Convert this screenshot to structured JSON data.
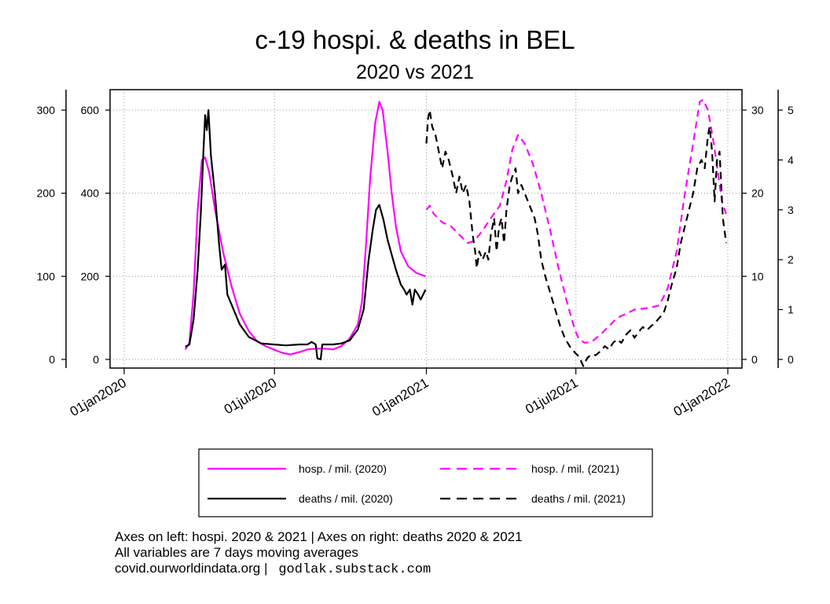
{
  "title": "c-19 hospi. & deaths in BEL",
  "subtitle": "2020 vs 2021",
  "notes": {
    "line1": "Axes on left: hospi. 2020 & 2021 | Axes on right: deaths 2020 & 2021",
    "line2": "All variables are 7 days moving averages",
    "line3": "covid.ourworldindata.org |",
    "line3_mono": "godlak.substack.com"
  },
  "colors": {
    "hosp": "#ff00ff",
    "deaths": "#000000",
    "grid": "#999999"
  },
  "chart_data": {
    "type": "line",
    "x_type": "date",
    "x_ticks": [
      "2020-01-01",
      "2020-07-01",
      "2021-01-01",
      "2021-07-01",
      "2022-01-01"
    ],
    "x_tick_labels": [
      "01jan2020",
      "01jul2020",
      "01jan2021",
      "01jul2021",
      "01jan2022"
    ],
    "xlim": [
      "2020-01-01",
      "2022-01-01"
    ],
    "grid": true,
    "legend_position": "bottom",
    "axes": {
      "left_outer": {
        "ylim": [
          0,
          300
        ],
        "ticks": [
          0,
          100,
          200,
          300
        ],
        "series": "hosp_2020"
      },
      "left_inner": {
        "ylim": [
          0,
          600
        ],
        "ticks": [
          0,
          200,
          400,
          600
        ],
        "series": "hosp_2021"
      },
      "right_inner": {
        "ylim": [
          0,
          30
        ],
        "ticks": [
          0,
          10,
          20,
          30
        ],
        "series": "deaths_2021"
      },
      "right_outer": {
        "ylim": [
          0,
          5
        ],
        "ticks": [
          0,
          1,
          2,
          3,
          4,
          5
        ],
        "series": "deaths_2020"
      }
    },
    "series": [
      {
        "id": "hosp_2020",
        "name": "hosp. / mil. (2020)",
        "axis": "left_outer",
        "color": "#ff00ff",
        "dash": "solid",
        "points": [
          [
            "2020-03-15",
            12
          ],
          [
            "2020-03-20",
            20
          ],
          [
            "2020-03-25",
            80
          ],
          [
            "2020-03-30",
            180
          ],
          [
            "2020-04-04",
            240
          ],
          [
            "2020-04-08",
            243
          ],
          [
            "2020-04-13",
            225
          ],
          [
            "2020-04-20",
            180
          ],
          [
            "2020-04-30",
            128
          ],
          [
            "2020-05-10",
            88
          ],
          [
            "2020-05-20",
            55
          ],
          [
            "2020-05-31",
            34
          ],
          [
            "2020-06-10",
            22
          ],
          [
            "2020-06-20",
            16
          ],
          [
            "2020-06-30",
            12
          ],
          [
            "2020-07-10",
            8
          ],
          [
            "2020-07-20",
            6
          ],
          [
            "2020-08-01",
            9
          ],
          [
            "2020-08-10",
            12
          ],
          [
            "2020-08-20",
            13
          ],
          [
            "2020-08-31",
            13
          ],
          [
            "2020-09-10",
            12
          ],
          [
            "2020-09-20",
            16
          ],
          [
            "2020-09-30",
            25
          ],
          [
            "2020-10-10",
            42
          ],
          [
            "2020-10-15",
            70
          ],
          [
            "2020-10-20",
            140
          ],
          [
            "2020-10-25",
            220
          ],
          [
            "2020-10-31",
            285
          ],
          [
            "2020-11-05",
            310
          ],
          [
            "2020-11-09",
            300
          ],
          [
            "2020-11-15",
            250
          ],
          [
            "2020-11-20",
            200
          ],
          [
            "2020-11-25",
            160
          ],
          [
            "2020-12-01",
            130
          ],
          [
            "2020-12-10",
            112
          ],
          [
            "2020-12-20",
            104
          ],
          [
            "2020-12-31",
            100
          ]
        ]
      },
      {
        "id": "deaths_2020",
        "name": "deaths / mil. (2020)",
        "axis": "right_outer",
        "color": "#000000",
        "dash": "solid",
        "points": [
          [
            "2020-03-15",
            0.25
          ],
          [
            "2020-03-20",
            0.3
          ],
          [
            "2020-03-25",
            0.8
          ],
          [
            "2020-03-30",
            1.8
          ],
          [
            "2020-04-03",
            3.0
          ],
          [
            "2020-04-06",
            4.2
          ],
          [
            "2020-04-08",
            4.9
          ],
          [
            "2020-04-10",
            4.6
          ],
          [
            "2020-04-12",
            5.0
          ],
          [
            "2020-04-15",
            4.1
          ],
          [
            "2020-04-20",
            3.3
          ],
          [
            "2020-04-25",
            2.3
          ],
          [
            "2020-04-28",
            1.8
          ],
          [
            "2020-05-02",
            1.9
          ],
          [
            "2020-05-05",
            1.3
          ],
          [
            "2020-05-10",
            1.1
          ],
          [
            "2020-05-20",
            0.7
          ],
          [
            "2020-05-31",
            0.45
          ],
          [
            "2020-06-15",
            0.32
          ],
          [
            "2020-06-30",
            0.3
          ],
          [
            "2020-07-15",
            0.28
          ],
          [
            "2020-07-31",
            0.3
          ],
          [
            "2020-08-10",
            0.3
          ],
          [
            "2020-08-15",
            0.35
          ],
          [
            "2020-08-20",
            0.3
          ],
          [
            "2020-08-22",
            0.02
          ],
          [
            "2020-08-26",
            0.0
          ],
          [
            "2020-08-28",
            0.3
          ],
          [
            "2020-09-10",
            0.3
          ],
          [
            "2020-09-20",
            0.32
          ],
          [
            "2020-09-30",
            0.38
          ],
          [
            "2020-10-10",
            0.6
          ],
          [
            "2020-10-17",
            1.0
          ],
          [
            "2020-10-23",
            2.0
          ],
          [
            "2020-10-28",
            2.6
          ],
          [
            "2020-11-01",
            3.0
          ],
          [
            "2020-11-05",
            3.1
          ],
          [
            "2020-11-10",
            2.8
          ],
          [
            "2020-11-15",
            2.4
          ],
          [
            "2020-11-20",
            2.1
          ],
          [
            "2020-11-25",
            1.8
          ],
          [
            "2020-12-01",
            1.5
          ],
          [
            "2020-12-05",
            1.4
          ],
          [
            "2020-12-08",
            1.3
          ],
          [
            "2020-12-12",
            1.4
          ],
          [
            "2020-12-15",
            1.1
          ],
          [
            "2020-12-18",
            1.4
          ],
          [
            "2020-12-22",
            1.3
          ],
          [
            "2020-12-25",
            1.2
          ],
          [
            "2020-12-28",
            1.3
          ],
          [
            "2020-12-31",
            1.4
          ]
        ]
      },
      {
        "id": "hosp_2021",
        "name": "hosp. / mil. (2021)",
        "axis": "left_inner",
        "color": "#ff00ff",
        "dash": "dashed",
        "points": [
          [
            "2021-01-01",
            360
          ],
          [
            "2021-01-05",
            370
          ],
          [
            "2021-01-10",
            350
          ],
          [
            "2021-01-20",
            330
          ],
          [
            "2021-01-31",
            320
          ],
          [
            "2021-02-10",
            300
          ],
          [
            "2021-02-20",
            280
          ],
          [
            "2021-02-28",
            285
          ],
          [
            "2021-03-10",
            310
          ],
          [
            "2021-03-20",
            340
          ],
          [
            "2021-03-31",
            370
          ],
          [
            "2021-04-08",
            430
          ],
          [
            "2021-04-15",
            505
          ],
          [
            "2021-04-22",
            540
          ],
          [
            "2021-04-30",
            520
          ],
          [
            "2021-05-10",
            470
          ],
          [
            "2021-05-20",
            400
          ],
          [
            "2021-05-31",
            310
          ],
          [
            "2021-06-10",
            220
          ],
          [
            "2021-06-20",
            140
          ],
          [
            "2021-06-30",
            70
          ],
          [
            "2021-07-05",
            48
          ],
          [
            "2021-07-12",
            40
          ],
          [
            "2021-07-20",
            42
          ],
          [
            "2021-07-31",
            60
          ],
          [
            "2021-08-10",
            80
          ],
          [
            "2021-08-20",
            100
          ],
          [
            "2021-08-31",
            110
          ],
          [
            "2021-09-10",
            120
          ],
          [
            "2021-09-20",
            122
          ],
          [
            "2021-09-30",
            125
          ],
          [
            "2021-10-10",
            130
          ],
          [
            "2021-10-20",
            170
          ],
          [
            "2021-10-31",
            260
          ],
          [
            "2021-11-10",
            400
          ],
          [
            "2021-11-20",
            520
          ],
          [
            "2021-11-28",
            620
          ],
          [
            "2021-12-02",
            625
          ],
          [
            "2021-12-08",
            600
          ],
          [
            "2021-12-15",
            520
          ],
          [
            "2021-12-20",
            450
          ],
          [
            "2021-12-25",
            380
          ],
          [
            "2021-12-30",
            350
          ]
        ]
      },
      {
        "id": "deaths_2021",
        "name": "deaths / mil. (2021)",
        "axis": "right_inner",
        "color": "#000000",
        "dash": "dashed",
        "points": [
          [
            "2021-01-01",
            26
          ],
          [
            "2021-01-03",
            29
          ],
          [
            "2021-01-05",
            30
          ],
          [
            "2021-01-08",
            28
          ],
          [
            "2021-01-12",
            27
          ],
          [
            "2021-01-16",
            25
          ],
          [
            "2021-01-20",
            23
          ],
          [
            "2021-01-24",
            25
          ],
          [
            "2021-01-28",
            24
          ],
          [
            "2021-02-02",
            22
          ],
          [
            "2021-02-06",
            20
          ],
          [
            "2021-02-10",
            22
          ],
          [
            "2021-02-14",
            20
          ],
          [
            "2021-02-18",
            21
          ],
          [
            "2021-02-22",
            19
          ],
          [
            "2021-02-26",
            15
          ],
          [
            "2021-03-01",
            13
          ],
          [
            "2021-03-03",
            11
          ],
          [
            "2021-03-06",
            13
          ],
          [
            "2021-03-10",
            12
          ],
          [
            "2021-03-14",
            13
          ],
          [
            "2021-03-17",
            12
          ],
          [
            "2021-03-20",
            15
          ],
          [
            "2021-03-24",
            17
          ],
          [
            "2021-03-27",
            13
          ],
          [
            "2021-03-30",
            16
          ],
          [
            "2021-04-02",
            17
          ],
          [
            "2021-04-05",
            14
          ],
          [
            "2021-04-08",
            18
          ],
          [
            "2021-04-12",
            21
          ],
          [
            "2021-04-15",
            22
          ],
          [
            "2021-04-19",
            23
          ],
          [
            "2021-04-22",
            20
          ],
          [
            "2021-04-26",
            21
          ],
          [
            "2021-04-30",
            20
          ],
          [
            "2021-05-04",
            19
          ],
          [
            "2021-05-08",
            18
          ],
          [
            "2021-05-12",
            17
          ],
          [
            "2021-05-16",
            15
          ],
          [
            "2021-05-20",
            12
          ],
          [
            "2021-05-25",
            10
          ],
          [
            "2021-05-31",
            8
          ],
          [
            "2021-06-06",
            6
          ],
          [
            "2021-06-12",
            4
          ],
          [
            "2021-06-18",
            2.5
          ],
          [
            "2021-06-24",
            1.5
          ],
          [
            "2021-06-30",
            0.8
          ],
          [
            "2021-07-05",
            0.3
          ],
          [
            "2021-07-10",
            -0.8
          ],
          [
            "2021-07-15",
            0.2
          ],
          [
            "2021-07-20",
            0.6
          ],
          [
            "2021-07-25",
            0.5
          ],
          [
            "2021-07-31",
            1
          ],
          [
            "2021-08-05",
            1.6
          ],
          [
            "2021-08-10",
            1.2
          ],
          [
            "2021-08-15",
            2
          ],
          [
            "2021-08-20",
            2.4
          ],
          [
            "2021-08-25",
            2
          ],
          [
            "2021-08-31",
            3
          ],
          [
            "2021-09-05",
            3.5
          ],
          [
            "2021-09-10",
            2.6
          ],
          [
            "2021-09-15",
            3.3
          ],
          [
            "2021-09-20",
            3.9
          ],
          [
            "2021-09-25",
            3.5
          ],
          [
            "2021-09-30",
            4
          ],
          [
            "2021-10-05",
            4.4
          ],
          [
            "2021-10-10",
            5
          ],
          [
            "2021-10-15",
            5.5
          ],
          [
            "2021-10-20",
            7
          ],
          [
            "2021-10-25",
            9
          ],
          [
            "2021-10-31",
            11
          ],
          [
            "2021-11-05",
            14
          ],
          [
            "2021-11-10",
            16
          ],
          [
            "2021-11-15",
            18
          ],
          [
            "2021-11-20",
            20
          ],
          [
            "2021-11-25",
            23
          ],
          [
            "2021-11-30",
            24
          ],
          [
            "2021-12-04",
            23
          ],
          [
            "2021-12-08",
            27
          ],
          [
            "2021-12-10",
            28
          ],
          [
            "2021-12-13",
            25
          ],
          [
            "2021-12-16",
            19
          ],
          [
            "2021-12-19",
            24
          ],
          [
            "2021-12-22",
            25
          ],
          [
            "2021-12-26",
            17
          ],
          [
            "2021-12-30",
            14
          ]
        ]
      }
    ]
  }
}
